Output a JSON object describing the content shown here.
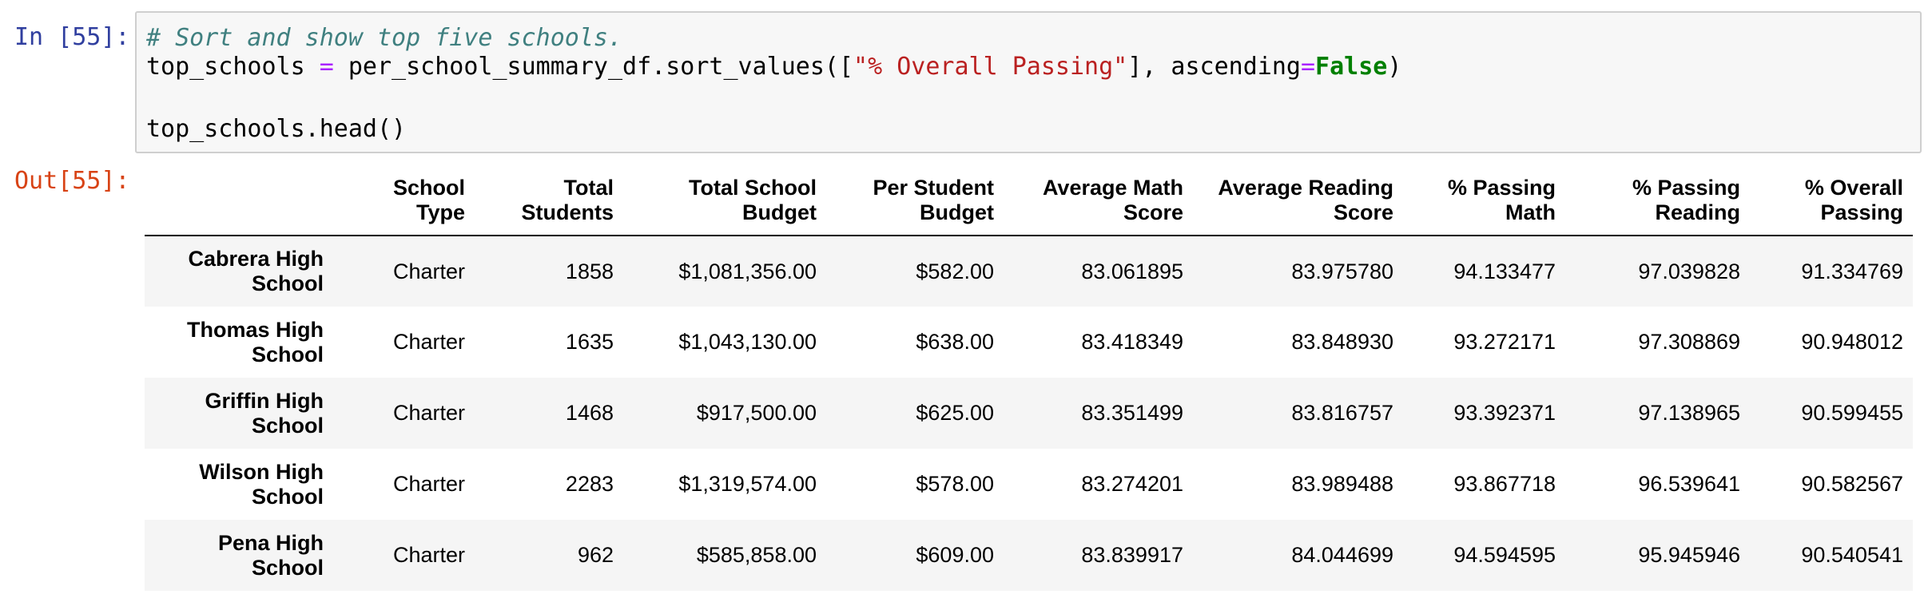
{
  "input_prompt": "In [55]:",
  "output_prompt": "Out[55]:",
  "code": {
    "comment": "# Sort and show top five schools.",
    "line2": {
      "var": "top_schools ",
      "eq": "=",
      "call_pre": " per_school_summary_df.sort_values([",
      "str": "\"% Overall Passing\"",
      "call_mid": "], ascending",
      "eq2": "=",
      "kw": "False",
      "close": ")"
    },
    "line3": "top_schools.head()"
  },
  "table": {
    "columns": [
      "",
      "School Type",
      "Total Students",
      "Total School Budget",
      "Per Student Budget",
      "Average Math Score",
      "Average Reading Score",
      "% Passing Math",
      "% Passing Reading",
      "% Overall Passing"
    ],
    "rows": [
      {
        "index": "Cabrera High School",
        "cells": [
          "Charter",
          "1858",
          "$1,081,356.00",
          "$582.00",
          "83.061895",
          "83.975780",
          "94.133477",
          "97.039828",
          "91.334769"
        ]
      },
      {
        "index": "Thomas High School",
        "cells": [
          "Charter",
          "1635",
          "$1,043,130.00",
          "$638.00",
          "83.418349",
          "83.848930",
          "93.272171",
          "97.308869",
          "90.948012"
        ]
      },
      {
        "index": "Griffin High School",
        "cells": [
          "Charter",
          "1468",
          "$917,500.00",
          "$625.00",
          "83.351499",
          "83.816757",
          "93.392371",
          "97.138965",
          "90.599455"
        ]
      },
      {
        "index": "Wilson High School",
        "cells": [
          "Charter",
          "2283",
          "$1,319,574.00",
          "$578.00",
          "83.274201",
          "83.989488",
          "93.867718",
          "96.539641",
          "90.582567"
        ]
      },
      {
        "index": "Pena High School",
        "cells": [
          "Charter",
          "962",
          "$585,858.00",
          "$609.00",
          "83.839917",
          "84.044699",
          "94.594595",
          "95.945946",
          "90.540541"
        ]
      }
    ]
  }
}
